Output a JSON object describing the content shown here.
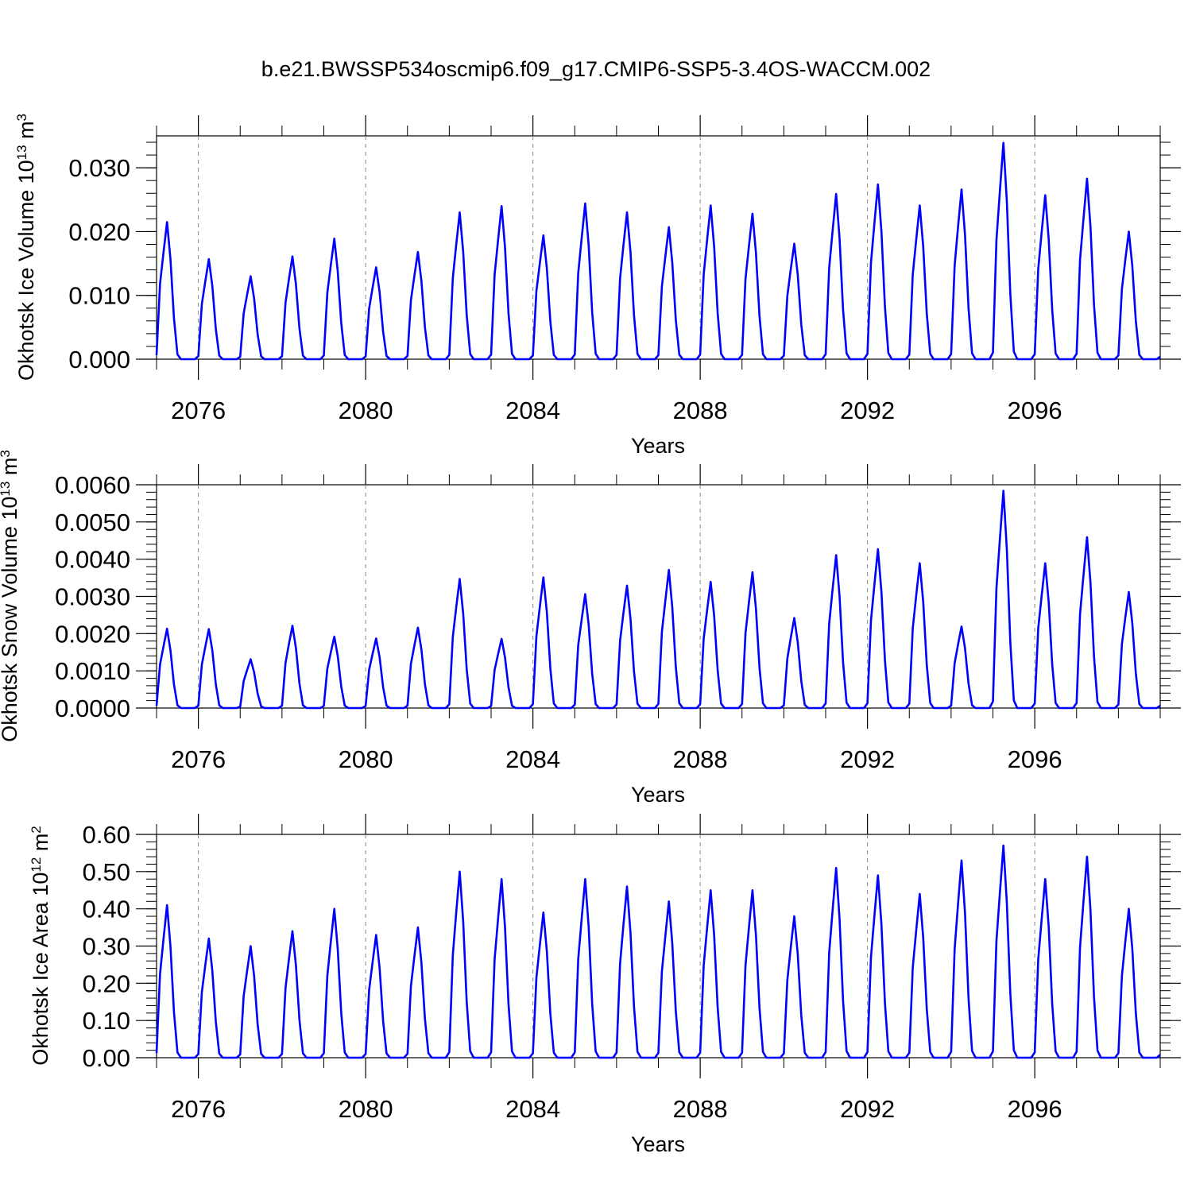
{
  "figure_title": "b.e21.BWSSP534oscmip6.f09_g17.CMIP6-SSP5-3.4OS-WACCM.002",
  "chart_data": [
    {
      "type": "line",
      "ylabel": "Okhotsk Ice Volume",
      "ylabel_unit_base": "10",
      "ylabel_unit_exp": "13",
      "ylabel_unit_tail": " m",
      "ylabel_unit_sup": "3",
      "xlabel": "Years",
      "xlim": [
        2075.0,
        2099.0
      ],
      "ylim": [
        0.0,
        0.035
      ],
      "yticks": [
        0.0,
        0.01,
        0.02,
        0.03
      ],
      "ytick_labels": [
        "0.000",
        "0.010",
        "0.020",
        "0.030"
      ],
      "xticks": [
        2076,
        2080,
        2084,
        2088,
        2092,
        2096
      ],
      "xtick_labels": [
        "2076",
        "2080",
        "2084",
        "2088",
        "2092",
        "2096"
      ],
      "line_color": "#0000ff",
      "series": [
        {
          "name": "Okhotsk Ice Volume",
          "peaks": [
            0.0215,
            0.0157,
            0.013,
            0.0161,
            0.0189,
            0.0144,
            0.0168,
            0.023,
            0.024,
            0.0194,
            0.0244,
            0.023,
            0.0207,
            0.0241,
            0.0228,
            0.0181,
            0.0259,
            0.0274,
            0.0241,
            0.0266,
            0.0339,
            0.0257,
            0.0283,
            0.02
          ]
        }
      ]
    },
    {
      "type": "line",
      "ylabel": "Okhotsk Snow Volume",
      "ylabel_unit_base": "10",
      "ylabel_unit_exp": "13",
      "ylabel_unit_tail": " m",
      "ylabel_unit_sup": "3",
      "xlabel": "Years",
      "xlim": [
        2075.0,
        2099.0
      ],
      "ylim": [
        0.0,
        0.006
      ],
      "yticks": [
        0.0,
        0.001,
        0.002,
        0.003,
        0.004,
        0.005,
        0.006
      ],
      "ytick_labels": [
        "0.0000",
        "0.0010",
        "0.0020",
        "0.0030",
        "0.0040",
        "0.0050",
        "0.0060"
      ],
      "xticks": [
        2076,
        2080,
        2084,
        2088,
        2092,
        2096
      ],
      "xtick_labels": [
        "2076",
        "2080",
        "2084",
        "2088",
        "2092",
        "2096"
      ],
      "line_color": "#0000ff",
      "series": [
        {
          "name": "Okhotsk Snow Volume",
          "peaks": [
            0.00213,
            0.00212,
            0.00131,
            0.00221,
            0.00192,
            0.00187,
            0.00216,
            0.00347,
            0.00186,
            0.00351,
            0.00306,
            0.00329,
            0.00371,
            0.00339,
            0.00365,
            0.00242,
            0.00411,
            0.00427,
            0.00389,
            0.00219,
            0.00584,
            0.00389,
            0.00459,
            0.00312
          ]
        }
      ]
    },
    {
      "type": "line",
      "ylabel": "Okhotsk Ice Area",
      "ylabel_unit_base": "10",
      "ylabel_unit_exp": "12",
      "ylabel_unit_tail": " m",
      "ylabel_unit_sup": "2",
      "xlabel": "Years",
      "xlim": [
        2075.0,
        2099.0
      ],
      "ylim": [
        0.0,
        0.6
      ],
      "yticks": [
        0.0,
        0.1,
        0.2,
        0.3,
        0.4,
        0.5,
        0.6
      ],
      "ytick_labels": [
        "0.00",
        "0.10",
        "0.20",
        "0.30",
        "0.40",
        "0.50",
        "0.60"
      ],
      "xticks": [
        2076,
        2080,
        2084,
        2088,
        2092,
        2096
      ],
      "xtick_labels": [
        "2076",
        "2080",
        "2084",
        "2088",
        "2092",
        "2096"
      ],
      "line_color": "#0000ff",
      "series": [
        {
          "name": "Okhotsk Ice Area",
          "peaks": [
            0.41,
            0.32,
            0.3,
            0.34,
            0.4,
            0.33,
            0.35,
            0.5,
            0.48,
            0.39,
            0.48,
            0.46,
            0.42,
            0.45,
            0.45,
            0.38,
            0.51,
            0.49,
            0.44,
            0.53,
            0.57,
            0.48,
            0.54,
            0.4
          ]
        }
      ]
    }
  ]
}
